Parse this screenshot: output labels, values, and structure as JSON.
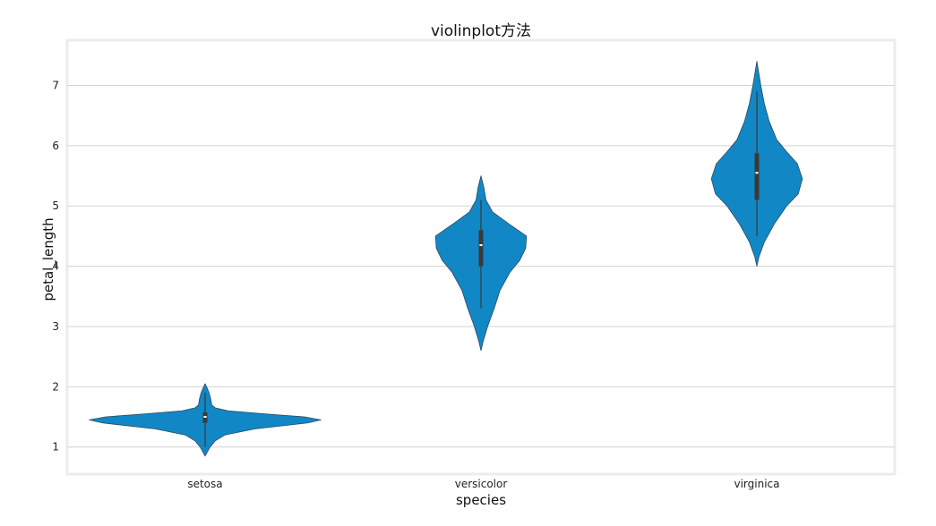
{
  "chart_data": {
    "type": "violin",
    "title": "violinplot方法",
    "xlabel": "species",
    "ylabel": "petal_length",
    "categories": [
      "setosa",
      "versicolor",
      "virginica"
    ],
    "yticks": [
      1,
      2,
      3,
      4,
      5,
      6,
      7
    ],
    "ylim": [
      0.55,
      7.75
    ],
    "grid": "horizontal",
    "color": "#1187c6",
    "box_color": "#3a3a3a",
    "violins": [
      {
        "category": "setosa",
        "min": 1.0,
        "q1": 1.4,
        "median": 1.5,
        "q3": 1.575,
        "max": 1.9,
        "kde_min": 0.85,
        "kde_max": 2.05,
        "profile": [
          [
            0.85,
            0.0
          ],
          [
            0.92,
            0.014
          ],
          [
            1.0,
            0.03
          ],
          [
            1.1,
            0.06
          ],
          [
            1.2,
            0.12
          ],
          [
            1.3,
            0.3
          ],
          [
            1.4,
            0.62
          ],
          [
            1.45,
            0.7
          ],
          [
            1.5,
            0.6
          ],
          [
            1.55,
            0.36
          ],
          [
            1.6,
            0.14
          ],
          [
            1.65,
            0.06
          ],
          [
            1.7,
            0.04
          ],
          [
            1.8,
            0.034
          ],
          [
            1.9,
            0.024
          ],
          [
            1.98,
            0.012
          ],
          [
            2.05,
            0.0
          ]
        ]
      },
      {
        "category": "versicolor",
        "min": 3.3,
        "q1": 4.0,
        "median": 4.35,
        "q3": 4.6,
        "max": 5.1,
        "kde_min": 2.6,
        "kde_max": 5.5,
        "profile": [
          [
            2.6,
            0.0
          ],
          [
            2.75,
            0.013
          ],
          [
            3.0,
            0.04
          ],
          [
            3.3,
            0.08
          ],
          [
            3.6,
            0.115
          ],
          [
            3.9,
            0.175
          ],
          [
            4.1,
            0.235
          ],
          [
            4.3,
            0.27
          ],
          [
            4.5,
            0.275
          ],
          [
            4.7,
            0.17
          ],
          [
            4.9,
            0.07
          ],
          [
            5.1,
            0.03
          ],
          [
            5.3,
            0.018
          ],
          [
            5.5,
            0.0
          ]
        ]
      },
      {
        "category": "virginica",
        "min": 4.5,
        "q1": 5.1,
        "median": 5.55,
        "q3": 5.875,
        "max": 6.9,
        "kde_min": 4.0,
        "kde_max": 7.4,
        "profile": [
          [
            4.0,
            0.0
          ],
          [
            4.15,
            0.012
          ],
          [
            4.4,
            0.045
          ],
          [
            4.7,
            0.105
          ],
          [
            5.0,
            0.18
          ],
          [
            5.2,
            0.25
          ],
          [
            5.45,
            0.275
          ],
          [
            5.7,
            0.245
          ],
          [
            5.9,
            0.18
          ],
          [
            6.1,
            0.12
          ],
          [
            6.4,
            0.075
          ],
          [
            6.7,
            0.045
          ],
          [
            7.0,
            0.024
          ],
          [
            7.2,
            0.012
          ],
          [
            7.4,
            0.0
          ]
        ]
      }
    ]
  }
}
